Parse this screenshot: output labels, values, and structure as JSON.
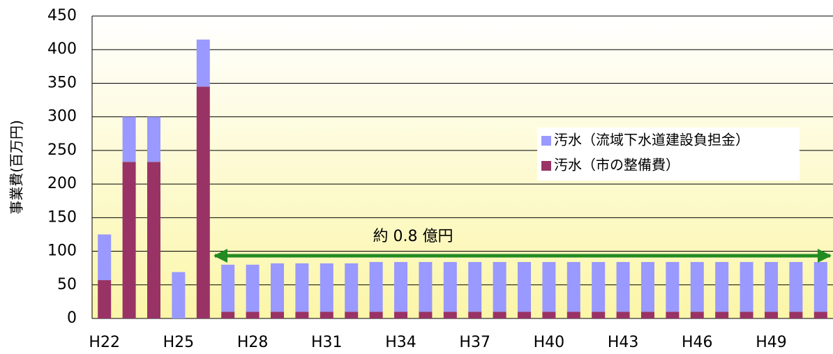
{
  "chart_data": {
    "type": "stacked_bar",
    "y_axis_label": "事業費(百万円)",
    "annotation": "約 0.8 億円",
    "categories": [
      "H22",
      null,
      null,
      "H25",
      null,
      null,
      "H28",
      null,
      null,
      "H31",
      null,
      null,
      "H34",
      null,
      null,
      "H37",
      null,
      null,
      "H40",
      null,
      null,
      "H43",
      null,
      null,
      "H46",
      null,
      null,
      "H49",
      null,
      null
    ],
    "series": [
      {
        "name": "汚水（流域下水道建設負担金）",
        "color": "#9999ff",
        "values": [
          68,
          67,
          67,
          69,
          70,
          70,
          70,
          72,
          72,
          72,
          72,
          74,
          74,
          74,
          74,
          74,
          74,
          74,
          74,
          74,
          74,
          74,
          74,
          74,
          74,
          74,
          74,
          74,
          74,
          74
        ]
      },
      {
        "name": "汚水（市の整備費）",
        "color": "#993366",
        "values": [
          57,
          233,
          233,
          0,
          345,
          10,
          10,
          10,
          10,
          10,
          10,
          10,
          10,
          10,
          10,
          10,
          10,
          10,
          10,
          10,
          10,
          10,
          10,
          10,
          10,
          10,
          10,
          10,
          10,
          10
        ]
      }
    ],
    "ylim": [
      0,
      450
    ],
    "yticks": [
      0,
      50,
      100,
      150,
      200,
      250,
      300,
      350,
      400,
      450
    ],
    "grid": true,
    "legend": "right"
  }
}
